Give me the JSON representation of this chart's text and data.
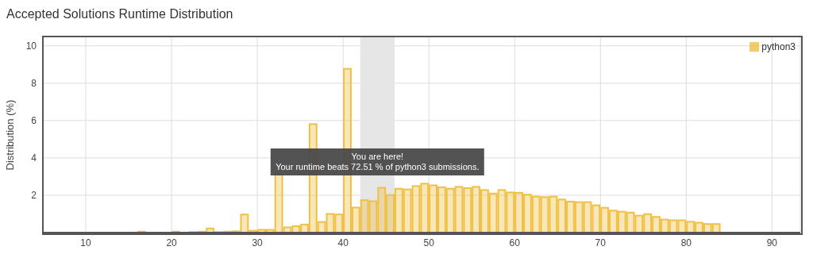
{
  "chart_data": {
    "type": "histogram",
    "title": "Accepted Solutions Runtime Distribution",
    "ylabel": "Distribution (%)",
    "bins": [
      16,
      17,
      18,
      19,
      20,
      21,
      22,
      23,
      24,
      25,
      26,
      27,
      28,
      29,
      30,
      31,
      32,
      33,
      34,
      35,
      36,
      37,
      38,
      39,
      40,
      41,
      42,
      43,
      44,
      45,
      46,
      47,
      48,
      49,
      50,
      51,
      52,
      53,
      54,
      55,
      56,
      57,
      58,
      59,
      60,
      61,
      62,
      63,
      64,
      65,
      66,
      67,
      68,
      69,
      70,
      71,
      72,
      73,
      74,
      75,
      76,
      77,
      78,
      79,
      80,
      81,
      82,
      83,
      84
    ],
    "series": [
      {
        "name": "python3",
        "color": "#efc045",
        "values": [
          0.05,
          0,
          0,
          0,
          0.05,
          0,
          0.03,
          0.05,
          0.22,
          0.03,
          0.05,
          0.07,
          0.97,
          0.1,
          0.15,
          0.15,
          3.13,
          0.28,
          0.34,
          0.43,
          5.81,
          0.57,
          1.0,
          0.97,
          8.77,
          1.34,
          1.74,
          1.68,
          2.4,
          2.01,
          2.35,
          2.31,
          2.49,
          2.62,
          2.53,
          2.43,
          2.35,
          2.45,
          2.38,
          2.45,
          2.28,
          2.09,
          2.28,
          2.15,
          2.13,
          2.03,
          1.93,
          1.9,
          1.93,
          1.77,
          1.66,
          1.63,
          1.63,
          1.46,
          1.33,
          1.18,
          1.12,
          1.07,
          0.91,
          0.99,
          0.84,
          0.7,
          0.66,
          0.66,
          0.58,
          0.53,
          0.46,
          0.46
        ]
      }
    ],
    "xlim": [
      5,
      93.3
    ],
    "xticks": [
      10,
      20,
      30,
      40,
      50,
      60,
      70,
      80,
      90
    ],
    "ylim": [
      0,
      10.5
    ],
    "yticks": [
      2,
      4,
      6,
      8,
      10
    ],
    "bands": [
      {
        "axis": "x",
        "from": 42,
        "to": 46,
        "color": "#e6e6e6"
      }
    ],
    "annotations": [
      "You are here!",
      "Your runtime beats 72.51 % of python3 submissions."
    ],
    "grid": true,
    "legend": "top right"
  }
}
